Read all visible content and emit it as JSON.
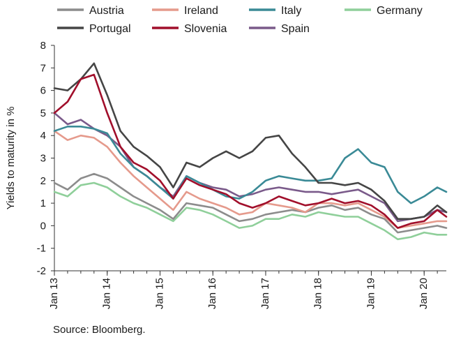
{
  "chart_data": {
    "type": "line",
    "title": "",
    "ylabel": "Yields to maturity in %",
    "xlabel": "",
    "source": "Source: Bloomberg.",
    "ylim": [
      -2,
      8
    ],
    "yticks": [
      -2,
      -1,
      0,
      1,
      2,
      3,
      4,
      5,
      6,
      7,
      8
    ],
    "xlim": [
      2013.0,
      2020.42
    ],
    "xticks": [
      {
        "label": "Jan 13",
        "value": 2013
      },
      {
        "label": "Jan 14",
        "value": 2014
      },
      {
        "label": "Jan 15",
        "value": 2015
      },
      {
        "label": "Jan 16",
        "value": 2016
      },
      {
        "label": "Jan 17",
        "value": 2017
      },
      {
        "label": "Jan 18",
        "value": 2018
      },
      {
        "label": "Jan 19",
        "value": 2019
      },
      {
        "label": "Jan 20",
        "value": 2020
      }
    ],
    "grid": false,
    "legend_position": "top",
    "x": [
      2013.0,
      2013.25,
      2013.5,
      2013.75,
      2014.0,
      2014.25,
      2014.5,
      2014.75,
      2015.0,
      2015.25,
      2015.5,
      2015.75,
      2016.0,
      2016.25,
      2016.5,
      2016.75,
      2017.0,
      2017.25,
      2017.5,
      2017.75,
      2018.0,
      2018.25,
      2018.5,
      2018.75,
      2019.0,
      2019.25,
      2019.5,
      2019.75,
      2020.0,
      2020.25,
      2020.42
    ],
    "series": [
      {
        "name": "Austria",
        "color": "#8c8c8c",
        "values": [
          1.9,
          1.6,
          2.1,
          2.3,
          2.1,
          1.7,
          1.3,
          1.0,
          0.7,
          0.3,
          1.0,
          0.9,
          0.8,
          0.5,
          0.2,
          0.3,
          0.5,
          0.6,
          0.7,
          0.6,
          0.8,
          0.9,
          0.7,
          0.8,
          0.5,
          0.3,
          -0.3,
          -0.2,
          -0.1,
          0.0,
          -0.1
        ]
      },
      {
        "name": "Ireland",
        "color": "#e59a8c",
        "values": [
          4.2,
          3.8,
          4.0,
          3.9,
          3.5,
          2.8,
          2.2,
          1.7,
          1.2,
          0.7,
          1.5,
          1.2,
          1.0,
          0.8,
          0.5,
          0.6,
          1.0,
          0.9,
          0.8,
          0.6,
          1.0,
          1.0,
          0.9,
          1.0,
          0.7,
          0.4,
          -0.1,
          0.0,
          0.1,
          0.2,
          0.2
        ]
      },
      {
        "name": "Italy",
        "color": "#3a8a96",
        "values": [
          4.2,
          4.4,
          4.4,
          4.3,
          4.1,
          3.2,
          2.6,
          2.2,
          1.7,
          1.2,
          2.2,
          1.9,
          1.6,
          1.3,
          1.2,
          1.5,
          2.0,
          2.2,
          2.1,
          2.0,
          2.0,
          2.1,
          3.0,
          3.4,
          2.8,
          2.6,
          1.5,
          1.0,
          1.3,
          1.7,
          1.5
        ]
      },
      {
        "name": "Germany",
        "color": "#8fcf9a",
        "values": [
          1.5,
          1.3,
          1.8,
          1.9,
          1.7,
          1.3,
          1.0,
          0.8,
          0.5,
          0.2,
          0.8,
          0.7,
          0.5,
          0.2,
          -0.1,
          0.0,
          0.3,
          0.3,
          0.5,
          0.4,
          0.6,
          0.5,
          0.4,
          0.4,
          0.1,
          -0.2,
          -0.6,
          -0.5,
          -0.3,
          -0.4,
          -0.4
        ]
      },
      {
        "name": "Portugal",
        "color": "#454545",
        "values": [
          6.1,
          6.0,
          6.5,
          7.2,
          5.8,
          4.2,
          3.5,
          3.1,
          2.6,
          1.7,
          2.8,
          2.6,
          3.0,
          3.3,
          3.0,
          3.3,
          3.9,
          4.0,
          3.2,
          2.6,
          1.9,
          1.9,
          1.8,
          1.9,
          1.6,
          1.1,
          0.3,
          0.3,
          0.4,
          0.9,
          0.6
        ]
      },
      {
        "name": "Slovenia",
        "color": "#a10f2b",
        "values": [
          5.0,
          5.5,
          6.5,
          6.7,
          5.0,
          3.5,
          2.8,
          2.5,
          2.0,
          1.2,
          2.1,
          1.8,
          1.6,
          1.4,
          1.0,
          0.8,
          1.0,
          1.3,
          1.1,
          0.9,
          1.0,
          1.2,
          1.0,
          1.1,
          0.9,
          0.5,
          -0.1,
          0.1,
          0.2,
          0.7,
          0.4
        ]
      },
      {
        "name": "Spain",
        "color": "#7a5a8a",
        "values": [
          5.0,
          4.5,
          4.7,
          4.3,
          4.0,
          3.5,
          2.6,
          2.2,
          1.7,
          1.3,
          2.2,
          1.9,
          1.7,
          1.6,
          1.3,
          1.4,
          1.6,
          1.7,
          1.6,
          1.5,
          1.5,
          1.4,
          1.5,
          1.6,
          1.3,
          1.0,
          0.2,
          0.3,
          0.4,
          0.7,
          0.6
        ]
      }
    ],
    "legend_rows": [
      [
        "Austria",
        "Ireland",
        "Italy",
        "Germany"
      ],
      [
        "Portugal",
        "Slovenia",
        "Spain"
      ]
    ]
  }
}
